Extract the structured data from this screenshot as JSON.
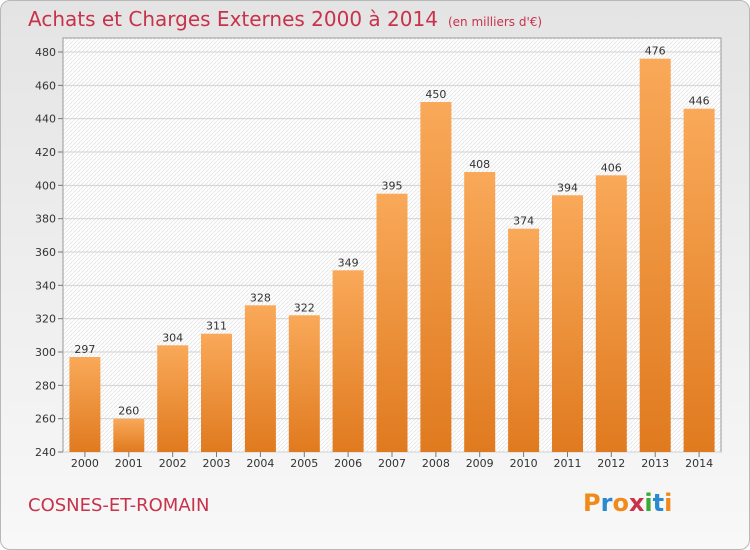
{
  "header": {
    "title": "Achats et Charges Externes 2000 à 2014",
    "subtitle": "(en milliers d'€)"
  },
  "footer": {
    "location": "COSNES-ET-ROMAIN",
    "brand": "Proxiti"
  },
  "colors": {
    "title": "#c8324b",
    "bar_light": "#f9a959",
    "bar_dark": "#e07a1f",
    "logo_letters": [
      "#f08a1a",
      "#2a8ad0",
      "#f08a1a",
      "#c8324b",
      "#3aaa35",
      "#2a8ad0",
      "#f08a1a"
    ]
  },
  "chart_data": {
    "type": "bar",
    "title": "Achats et Charges Externes 2000 à 2014",
    "subtitle": "(en milliers d'€)",
    "categories": [
      "2000",
      "2001",
      "2002",
      "2003",
      "2004",
      "2005",
      "2006",
      "2007",
      "2008",
      "2009",
      "2010",
      "2011",
      "2012",
      "2013",
      "2014"
    ],
    "values": [
      297,
      260,
      304,
      311,
      328,
      322,
      349,
      395,
      450,
      408,
      374,
      394,
      406,
      476,
      446
    ],
    "ylim": [
      240,
      480
    ],
    "yticks": [
      240,
      260,
      280,
      300,
      320,
      340,
      360,
      380,
      400,
      420,
      440,
      460,
      480
    ],
    "grid": true,
    "legend": "none"
  }
}
